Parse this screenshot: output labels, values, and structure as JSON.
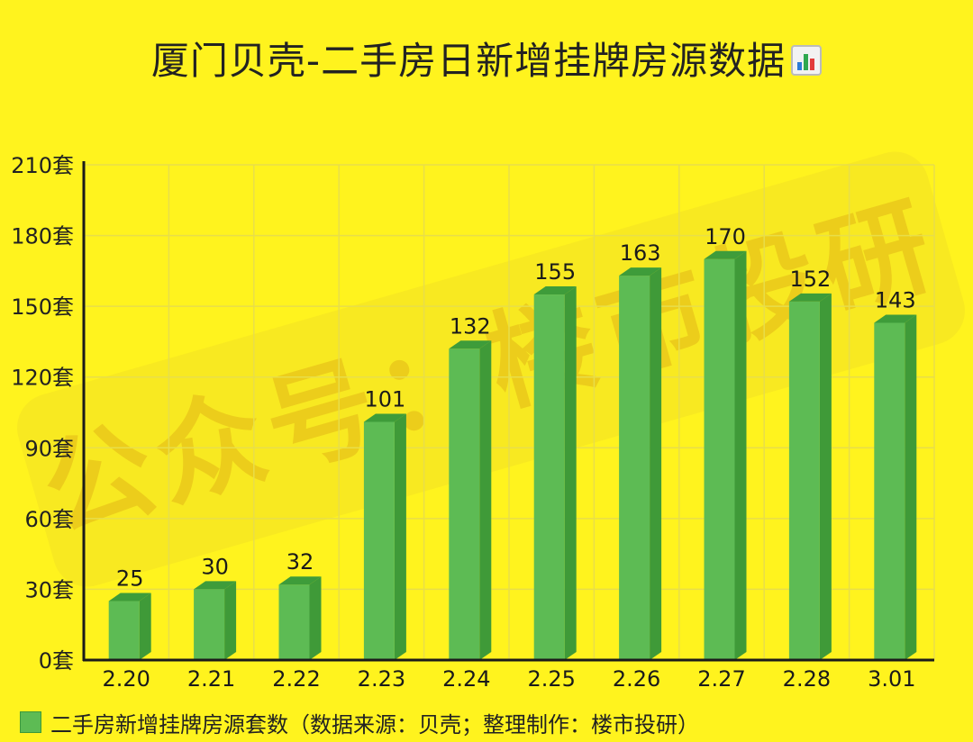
{
  "title": "厦门贝壳-二手房日新增挂牌房源数据",
  "title_icon": "bar-chart-emoji-icon",
  "watermark": "公众号：楼市投研",
  "legend": {
    "label": "二手房新增挂牌房源套数（数据来源：贝壳；整理制作：楼市投研）"
  },
  "colors": {
    "background": "#FFF31E",
    "bar_front": "#5DBB54",
    "bar_top": "#3E9C3A",
    "bar_side": "#3F9A38",
    "grid": "#E8DE4A",
    "axis": "#1a1a1a"
  },
  "chart_data": {
    "type": "bar",
    "title": "厦门贝壳-二手房日新增挂牌房源数据",
    "categories": [
      "2.20",
      "2.21",
      "2.22",
      "2.23",
      "2.24",
      "2.25",
      "2.26",
      "2.27",
      "2.28",
      "3.01"
    ],
    "series": [
      {
        "name": "二手房新增挂牌房源套数（数据来源：贝壳；整理制作：楼市投研）",
        "values": [
          25,
          30,
          32,
          101,
          132,
          155,
          163,
          170,
          152,
          143
        ]
      }
    ],
    "y_ticks": [
      "0套",
      "30套",
      "60套",
      "90套",
      "120套",
      "150套",
      "180套",
      "210套"
    ],
    "ylim": [
      0,
      210
    ],
    "grid": true,
    "legend_position": "bottom-left",
    "bar_style": "3d"
  }
}
